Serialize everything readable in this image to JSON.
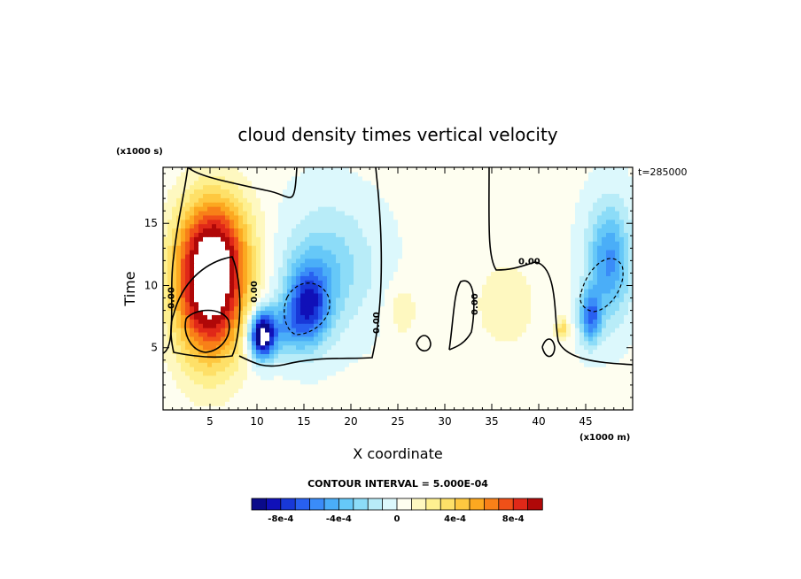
{
  "chart_data": {
    "type": "heatmap",
    "title": "cloud density times vertical velocity",
    "xlabel": "X coordinate",
    "ylabel": "Time",
    "x_scale_label": "(x1000 m)",
    "y_scale_label": "(x1000 s)",
    "timestamp": "t=285000",
    "contour_interval_text": "CONTOUR INTERVAL = 5.000E-04",
    "xlim": [
      0,
      50
    ],
    "ylim": [
      0,
      19.5
    ],
    "xticks": [
      5,
      10,
      15,
      20,
      25,
      30,
      35,
      40,
      45
    ],
    "yticks": [
      5,
      10,
      15
    ],
    "contour_label": "0.00",
    "colorbar": {
      "levels": [
        -0.001,
        -0.0009,
        -0.0008,
        -0.0007,
        -0.0006,
        -0.0005,
        -0.0004,
        -0.0003,
        -0.0002,
        -0.0001,
        0,
        0.0001,
        0.0002,
        0.0003,
        0.0004,
        0.0005,
        0.0006,
        0.0007,
        0.0008,
        0.0009,
        0.001
      ],
      "tick_labels": [
        "-8e-4",
        "-4e-4",
        "0",
        "4e-4",
        "8e-4"
      ],
      "tick_values": [
        -0.0008,
        -0.0004,
        0,
        0.0004,
        0.0008
      ],
      "colors": [
        "#0a0a8a",
        "#1010b8",
        "#1838d8",
        "#2860f0",
        "#3a8cf8",
        "#4aaef8",
        "#66c8f8",
        "#8cdcf8",
        "#b8ecf8",
        "#dcf8fc",
        "#fefef0",
        "#fef8c0",
        "#fef090",
        "#fee068",
        "#fec840",
        "#fca820",
        "#f88018",
        "#f05018",
        "#e02818",
        "#b00808"
      ]
    },
    "features": [
      {
        "x": 5.0,
        "y": 10.0,
        "sx": 2.6,
        "sy": 4.2,
        "amp": 0.0012
      },
      {
        "x": 6.0,
        "y": 13.5,
        "sx": 2.8,
        "sy": 3.0,
        "amp": 0.0003
      },
      {
        "x": 10.5,
        "y": 6.0,
        "sx": 0.9,
        "sy": 1.3,
        "amp": -0.0011
      },
      {
        "x": 15.5,
        "y": 8.5,
        "sx": 1.6,
        "sy": 2.2,
        "amp": -0.0007
      },
      {
        "x": 17.5,
        "y": 11.5,
        "sx": 3.5,
        "sy": 3.5,
        "amp": -0.0003
      },
      {
        "x": 12.5,
        "y": 6.5,
        "sx": 1.8,
        "sy": 1.5,
        "amp": -0.00035
      },
      {
        "x": 25.5,
        "y": 8.0,
        "sx": 1.2,
        "sy": 1.6,
        "amp": 0.00015
      },
      {
        "x": 36.5,
        "y": 8.5,
        "sx": 2.2,
        "sy": 2.4,
        "amp": 0.00018
      },
      {
        "x": 42.5,
        "y": 6.5,
        "sx": 0.5,
        "sy": 0.6,
        "amp": 0.00035
      },
      {
        "x": 47.5,
        "y": 12.0,
        "sx": 1.6,
        "sy": 3.2,
        "amp": -0.00055
      },
      {
        "x": 45.5,
        "y": 7.5,
        "sx": 0.8,
        "sy": 1.5,
        "amp": -0.0006
      }
    ]
  }
}
